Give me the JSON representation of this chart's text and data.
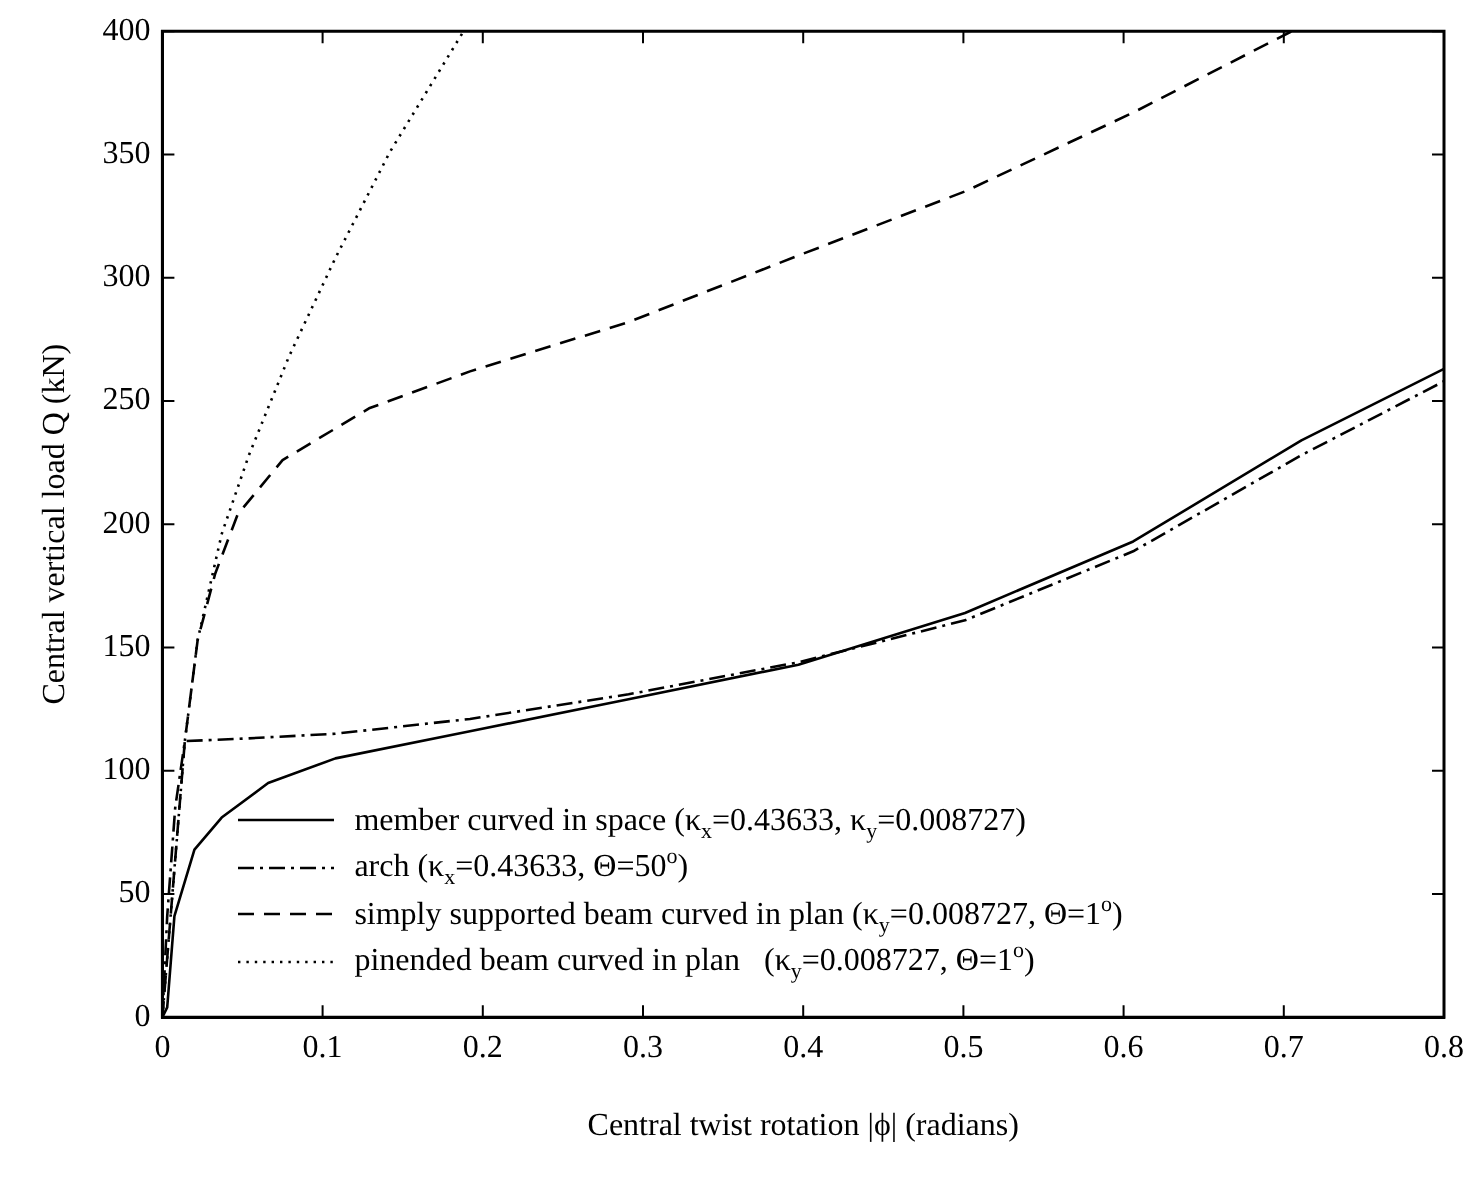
{
  "chart_data": {
    "type": "line",
    "xlabel": "Central twist rotation |ϕ| (radians)",
    "ylabel": "Central vertical load Q (kN)",
    "xlim": [
      0,
      0.8
    ],
    "xticks": [
      0,
      0.1,
      0.2,
      0.3,
      0.4,
      0.5,
      0.6,
      0.7,
      0.8
    ],
    "ylim": [
      0,
      400
    ],
    "yticks": [
      0,
      50,
      100,
      150,
      200,
      250,
      300,
      350,
      400
    ],
    "grid": false,
    "legend": "bottom",
    "marker": "none",
    "series": [
      {
        "name": "member curved in space (κ$_{x}$=0.43633, κ$_{y}$=0.008727)",
        "color": "#000000",
        "line_style": "solid",
        "x": [
          0,
          0.003,
          0.0075,
          0.02,
          0.037,
          0.066,
          0.108,
          0.192,
          0.291,
          0.397,
          0.501,
          0.606,
          0.711,
          0.8
        ],
        "values": [
          0,
          4,
          41,
          68,
          81,
          95,
          105,
          116,
          129,
          143,
          164,
          193,
          234,
          263
        ]
      },
      {
        "name": "arch (κ$_{x}$=0.43633, Θ=50$^{o}$)",
        "color": "#000000",
        "line_style": "dashdot",
        "x": [
          0,
          0.003,
          0.008,
          0.014,
          0.05,
          0.108,
          0.192,
          0.291,
          0.397,
          0.501,
          0.606,
          0.711,
          0.8
        ],
        "values": [
          0,
          41,
          85,
          112,
          113,
          115,
          121,
          131,
          144,
          161,
          189,
          228,
          258
        ]
      },
      {
        "name": "simply supported beam curved in plan (κ$_{y}$=0.008727, Θ=1$^{o}$)",
        "color": "#000000",
        "line_style": "dashed",
        "x": [
          0,
          0.005,
          0.01,
          0.014,
          0.022,
          0.033,
          0.047,
          0.075,
          0.129,
          0.192,
          0.291,
          0.397,
          0.501,
          0.606,
          0.705
        ],
        "values": [
          0,
          40,
          80,
          112,
          153,
          180,
          204,
          226,
          247,
          262,
          282,
          309,
          335,
          367,
          400
        ]
      },
      {
        "name": "pinended beam curved in plan   (κ$_{y}$=0.008727, Θ=1$^{o}$)",
        "color": "#000000",
        "line_style": "dotted",
        "x": [
          0,
          0.005,
          0.01,
          0.014,
          0.022,
          0.037,
          0.054,
          0.079,
          0.108,
          0.142,
          0.188
        ],
        "values": [
          0,
          40,
          80,
          112,
          153,
          196,
          228,
          268,
          308,
          351,
          400
        ]
      }
    ]
  }
}
